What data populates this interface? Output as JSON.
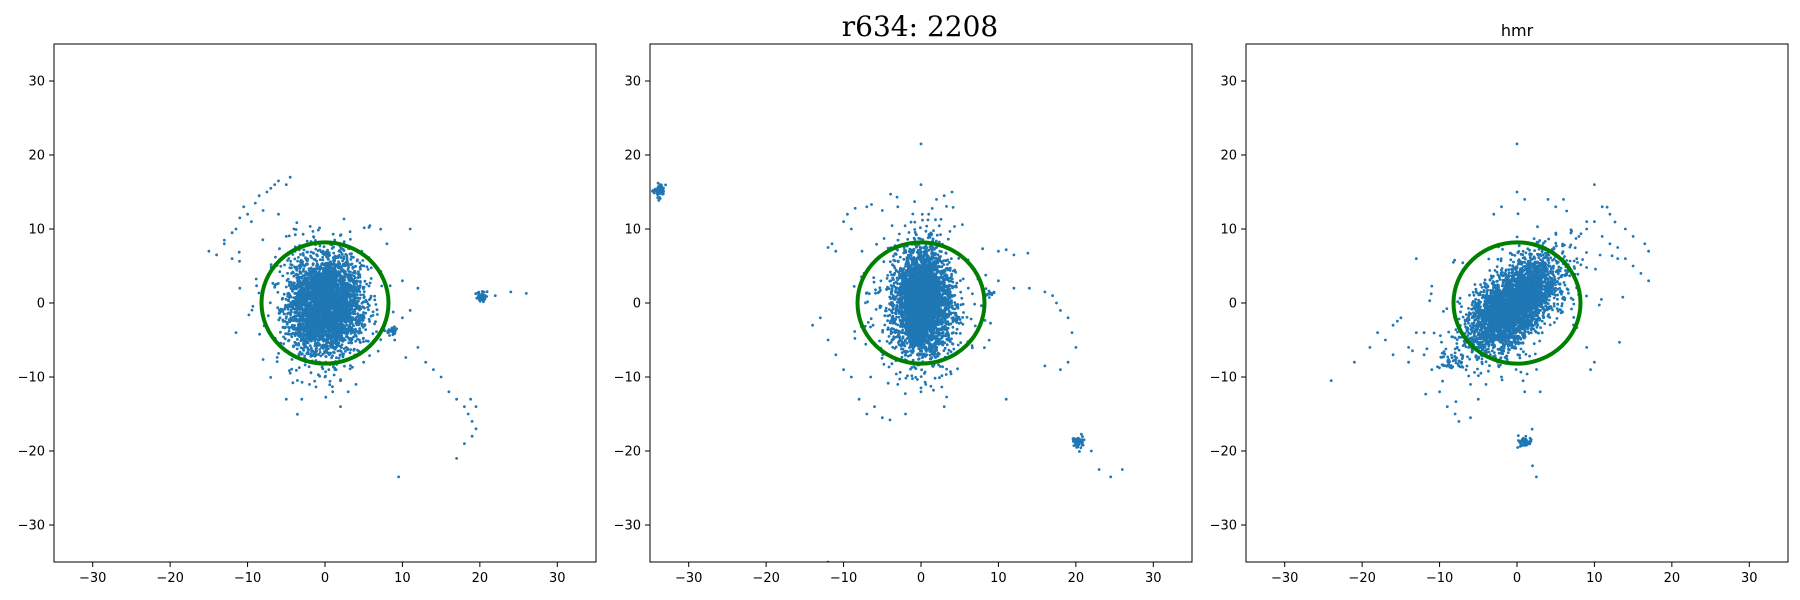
{
  "figure": {
    "suptitle": "r634: 2208"
  },
  "colors": {
    "points": "#1f77b4",
    "circle": "#008000",
    "axes": "#000000",
    "background": "#ffffff"
  },
  "chart_data": [
    {
      "type": "scatter",
      "title": "",
      "xlim": [
        -35,
        35
      ],
      "ylim": [
        -35,
        35
      ],
      "xticks": [
        -30,
        -20,
        -10,
        0,
        10,
        20,
        30
      ],
      "yticks": [
        -30,
        -20,
        -10,
        0,
        10,
        20,
        30
      ],
      "grid": false,
      "circle": {
        "cx": 0,
        "cy": 0,
        "r": 8.2
      },
      "clusters": [
        {
          "cx": 0.0,
          "cy": -0.3,
          "sx": 2.3,
          "sy": 3.2,
          "rho": 0.0,
          "n": 3500
        },
        {
          "cx": 0.0,
          "cy": -0.5,
          "sx": 4.2,
          "sy": 4.6,
          "rho": 0.0,
          "n": 260
        },
        {
          "cx": 20.3,
          "cy": 0.9,
          "sx": 0.35,
          "sy": 0.35,
          "rho": 0.0,
          "n": 60
        },
        {
          "cx": 8.7,
          "cy": -3.8,
          "sx": 0.5,
          "sy": 0.25,
          "rho": 0.0,
          "n": 30
        }
      ],
      "scatter_points": [
        [
          -15,
          7
        ],
        [
          -14,
          6.5
        ],
        [
          -13,
          8.5
        ],
        [
          -12,
          9.5
        ],
        [
          -11.5,
          10
        ],
        [
          -11,
          11.5
        ],
        [
          -10,
          12
        ],
        [
          -10.5,
          13
        ],
        [
          -9,
          13.5
        ],
        [
          -8.5,
          14.5
        ],
        [
          -7.5,
          15
        ],
        [
          -7,
          15.5
        ],
        [
          -6.5,
          16
        ],
        [
          -6,
          16.5
        ],
        [
          -5,
          16
        ],
        [
          -4.5,
          17
        ],
        [
          -9.5,
          11
        ],
        [
          -8,
          12.5
        ],
        [
          -12,
          6
        ],
        [
          -11,
          2
        ],
        [
          -11.5,
          -4
        ],
        [
          -13,
          8
        ],
        [
          -6,
          12
        ],
        [
          -4,
          10
        ],
        [
          -5,
          9
        ],
        [
          8,
          8
        ],
        [
          11,
          10
        ],
        [
          10,
          3
        ],
        [
          12,
          2
        ],
        [
          11,
          -1
        ],
        [
          12,
          -6
        ],
        [
          13,
          -8
        ],
        [
          14,
          -9
        ],
        [
          15,
          -10
        ],
        [
          16,
          -12
        ],
        [
          17,
          -13
        ],
        [
          18,
          -14
        ],
        [
          18.5,
          -15
        ],
        [
          19,
          -16
        ],
        [
          19.5,
          -17
        ],
        [
          19,
          -18
        ],
        [
          18,
          -19
        ],
        [
          17,
          -21
        ],
        [
          19.5,
          -14
        ],
        [
          18.8,
          -13
        ],
        [
          9.5,
          -23.5
        ],
        [
          10,
          -2
        ],
        [
          9,
          -5
        ],
        [
          24,
          1.5
        ],
        [
          26,
          1.3
        ],
        [
          22,
          1
        ],
        [
          -3,
          -13
        ],
        [
          -5,
          -13
        ],
        [
          2,
          -14
        ],
        [
          3,
          -12
        ],
        [
          4,
          -11
        ],
        [
          1,
          -12
        ],
        [
          -2,
          -11
        ],
        [
          0,
          -10
        ],
        [
          5,
          -8
        ],
        [
          2,
          -10.5
        ]
      ]
    },
    {
      "type": "scatter",
      "title": "",
      "xlim": [
        -35,
        35
      ],
      "ylim": [
        -35,
        35
      ],
      "xticks": [
        -30,
        -20,
        -10,
        0,
        10,
        20,
        30
      ],
      "yticks": [
        -30,
        -20,
        -10,
        0,
        10,
        20,
        30
      ],
      "grid": false,
      "circle": {
        "cx": 0,
        "cy": 0,
        "r": 8.2
      },
      "clusters": [
        {
          "cx": 0.2,
          "cy": 0.0,
          "sx": 1.8,
          "sy": 3.5,
          "rho": 0.0,
          "n": 3500
        },
        {
          "cx": 0.2,
          "cy": 0.0,
          "sx": 3.8,
          "sy": 5.5,
          "rho": 0.0,
          "n": 260
        },
        {
          "cx": -33.8,
          "cy": 15.3,
          "sx": 0.4,
          "sy": 0.45,
          "rho": 0.0,
          "n": 70
        },
        {
          "cx": 20.3,
          "cy": -18.8,
          "sx": 0.4,
          "sy": 0.35,
          "rho": 0.0,
          "n": 55
        },
        {
          "cx": 8.8,
          "cy": 1.3,
          "sx": 0.3,
          "sy": 0.25,
          "rho": 0.0,
          "n": 15
        }
      ],
      "scatter_points": [
        [
          -10,
          11
        ],
        [
          -9.5,
          12
        ],
        [
          -8.5,
          12.8
        ],
        [
          -7,
          13
        ],
        [
          -9,
          10
        ],
        [
          -11,
          7
        ],
        [
          -12,
          7.5
        ],
        [
          -11.5,
          8
        ],
        [
          -13,
          -2
        ],
        [
          -14,
          -3
        ],
        [
          -12,
          -5
        ],
        [
          -11,
          -7
        ],
        [
          -10,
          -9
        ],
        [
          -9,
          -10
        ],
        [
          -7,
          -15
        ],
        [
          -5,
          -15.5
        ],
        [
          -4,
          -15.8
        ],
        [
          -2,
          -15
        ],
        [
          3,
          -14
        ],
        [
          0,
          -12
        ],
        [
          -3,
          -11
        ],
        [
          -6,
          -14
        ],
        [
          -8,
          -13
        ],
        [
          -6.5,
          -10
        ],
        [
          0,
          21.5
        ],
        [
          0,
          16
        ],
        [
          2,
          14
        ],
        [
          3,
          14.5
        ],
        [
          4,
          15
        ],
        [
          -3,
          13
        ],
        [
          -5,
          12.5
        ],
        [
          1,
          12
        ],
        [
          10,
          7
        ],
        [
          12,
          6.5
        ],
        [
          11,
          7.2
        ],
        [
          10,
          3
        ],
        [
          12,
          2
        ],
        [
          14,
          2
        ],
        [
          16,
          1.5
        ],
        [
          17,
          1
        ],
        [
          17.5,
          0
        ],
        [
          18,
          -1
        ],
        [
          19,
          -2
        ],
        [
          19.5,
          -4
        ],
        [
          20,
          -6
        ],
        [
          19,
          -8
        ],
        [
          18,
          -9
        ],
        [
          16,
          -8.5
        ],
        [
          11,
          -13
        ],
        [
          22,
          -20
        ],
        [
          23,
          -22.5
        ],
        [
          24.5,
          -23.5
        ],
        [
          26,
          -22.5
        ],
        [
          -12,
          -35
        ]
      ]
    },
    {
      "type": "scatter",
      "title": "hmr",
      "xlim": [
        -35,
        35
      ],
      "ylim": [
        -35,
        35
      ],
      "xticks": [
        -30,
        -20,
        -10,
        0,
        10,
        20,
        30
      ],
      "yticks": [
        -30,
        -20,
        -10,
        0,
        10,
        20,
        30
      ],
      "grid": false,
      "circle": {
        "cx": 0,
        "cy": 0,
        "r": 8.2
      },
      "clusters": [
        {
          "cx": -0.4,
          "cy": -0.2,
          "sx": 2.8,
          "sy": 3.0,
          "rho": 0.55,
          "n": 3500
        },
        {
          "cx": -1.0,
          "cy": -1.0,
          "sx": 4.8,
          "sy": 4.6,
          "rho": 0.5,
          "n": 280
        },
        {
          "cx": 1.0,
          "cy": -18.8,
          "sx": 0.4,
          "sy": 0.4,
          "rho": 0.0,
          "n": 55
        },
        {
          "cx": -8.5,
          "cy": -8.0,
          "sx": 0.9,
          "sy": 0.5,
          "rho": 0.0,
          "n": 35
        }
      ],
      "scatter_points": [
        [
          -24,
          -10.5
        ],
        [
          -21,
          -8
        ],
        [
          -19,
          -6
        ],
        [
          -18,
          -4
        ],
        [
          -17,
          -5
        ],
        [
          -16,
          -3
        ],
        [
          -15,
          -2
        ],
        [
          -14,
          -6
        ],
        [
          -13,
          -4
        ],
        [
          -12,
          -7
        ],
        [
          -11,
          -9
        ],
        [
          -14,
          -8
        ],
        [
          -16,
          -7
        ],
        [
          -12,
          -4
        ],
        [
          -13,
          6
        ],
        [
          -10,
          -12
        ],
        [
          -9,
          -14
        ],
        [
          -8,
          -15
        ],
        [
          -7.5,
          -16
        ],
        [
          -6,
          -15.5
        ],
        [
          -5,
          -13
        ],
        [
          -6,
          -11
        ],
        [
          8,
          9
        ],
        [
          9,
          10
        ],
        [
          10,
          11
        ],
        [
          11,
          9
        ],
        [
          12,
          8
        ],
        [
          13,
          7.5
        ],
        [
          14,
          6
        ],
        [
          15,
          5
        ],
        [
          16,
          4
        ],
        [
          17,
          3
        ],
        [
          16.5,
          8
        ],
        [
          17,
          7
        ],
        [
          15,
          9
        ],
        [
          14,
          10
        ],
        [
          12,
          12
        ],
        [
          11,
          13
        ],
        [
          10,
          16
        ],
        [
          9,
          11
        ],
        [
          13,
          6
        ],
        [
          0,
          21.5
        ],
        [
          0,
          15
        ],
        [
          1,
          14
        ],
        [
          4,
          14
        ],
        [
          5,
          13
        ],
        [
          6,
          14
        ],
        [
          -2,
          13
        ],
        [
          -3,
          12
        ],
        [
          9,
          -6
        ],
        [
          10,
          -8
        ],
        [
          9.5,
          -9
        ],
        [
          2,
          -22
        ],
        [
          2.5,
          -23.5
        ],
        [
          3,
          -12
        ],
        [
          1,
          -12
        ],
        [
          -2,
          -10
        ],
        [
          -4,
          -11
        ]
      ]
    }
  ]
}
